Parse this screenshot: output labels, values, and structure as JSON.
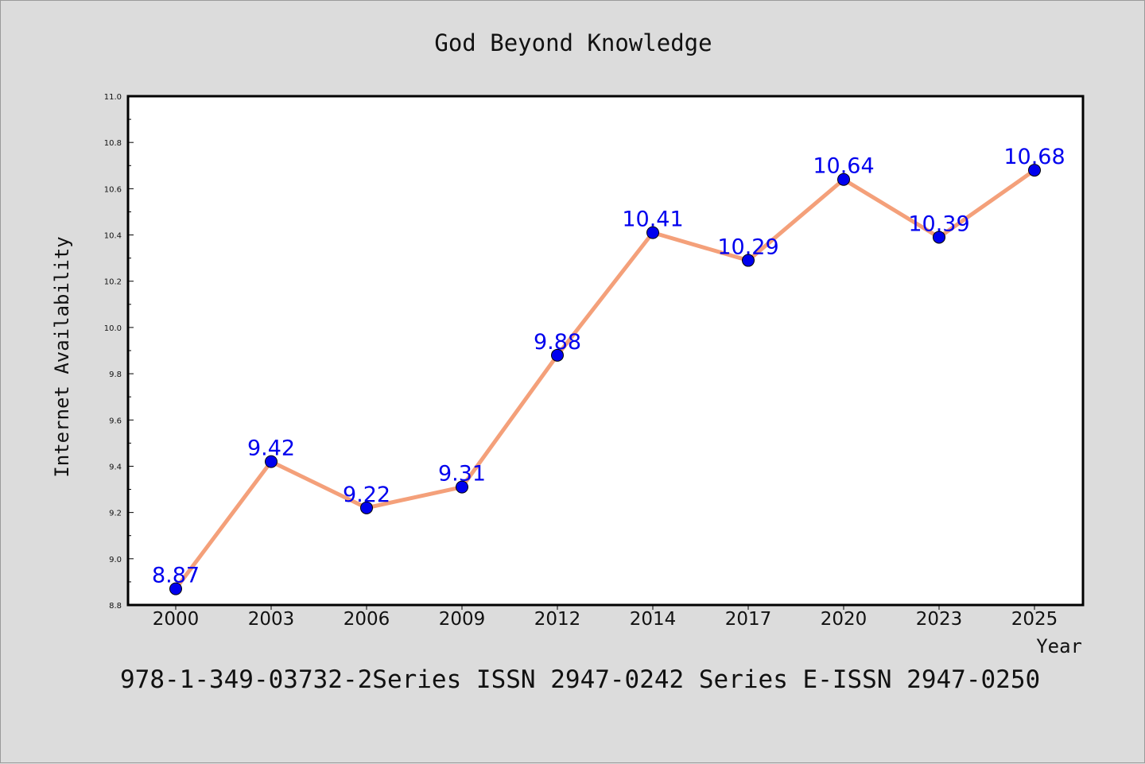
{
  "chart_data": {
    "type": "line",
    "title": "God Beyond Knowledge",
    "xlabel": "Year",
    "ylabel": "Internet Availability",
    "categories": [
      "2000",
      "2003",
      "2006",
      "2009",
      "2012",
      "2014",
      "2017",
      "2020",
      "2023",
      "2025"
    ],
    "series": [
      {
        "values": [
          8.87,
          9.42,
          9.22,
          9.31,
          9.88,
          10.41,
          10.29,
          10.64,
          10.39,
          10.68
        ],
        "data_labels": [
          "8.87",
          "9.42",
          "9.22",
          "9.31",
          "9.88",
          "10.41",
          "10.29",
          "10.64",
          "10.39",
          "10.68"
        ]
      }
    ],
    "ylim": [
      8.8,
      11.0
    ],
    "yticks": [
      "8.8",
      "9.0",
      "9.2",
      "9.4",
      "9.6",
      "9.8",
      "10.0",
      "10.2",
      "10.4",
      "10.6",
      "10.8",
      "11.0"
    ],
    "grid": false,
    "legend": "none",
    "colors": {
      "line": "#f4a07a",
      "marker": "#0000ee",
      "label": "#0000ee",
      "background": "#dcdcdc",
      "plot_background": "#ffffff"
    }
  },
  "footer": "978-1-349-03732-2Series ISSN 2947-0242 Series E-ISSN 2947-0250"
}
